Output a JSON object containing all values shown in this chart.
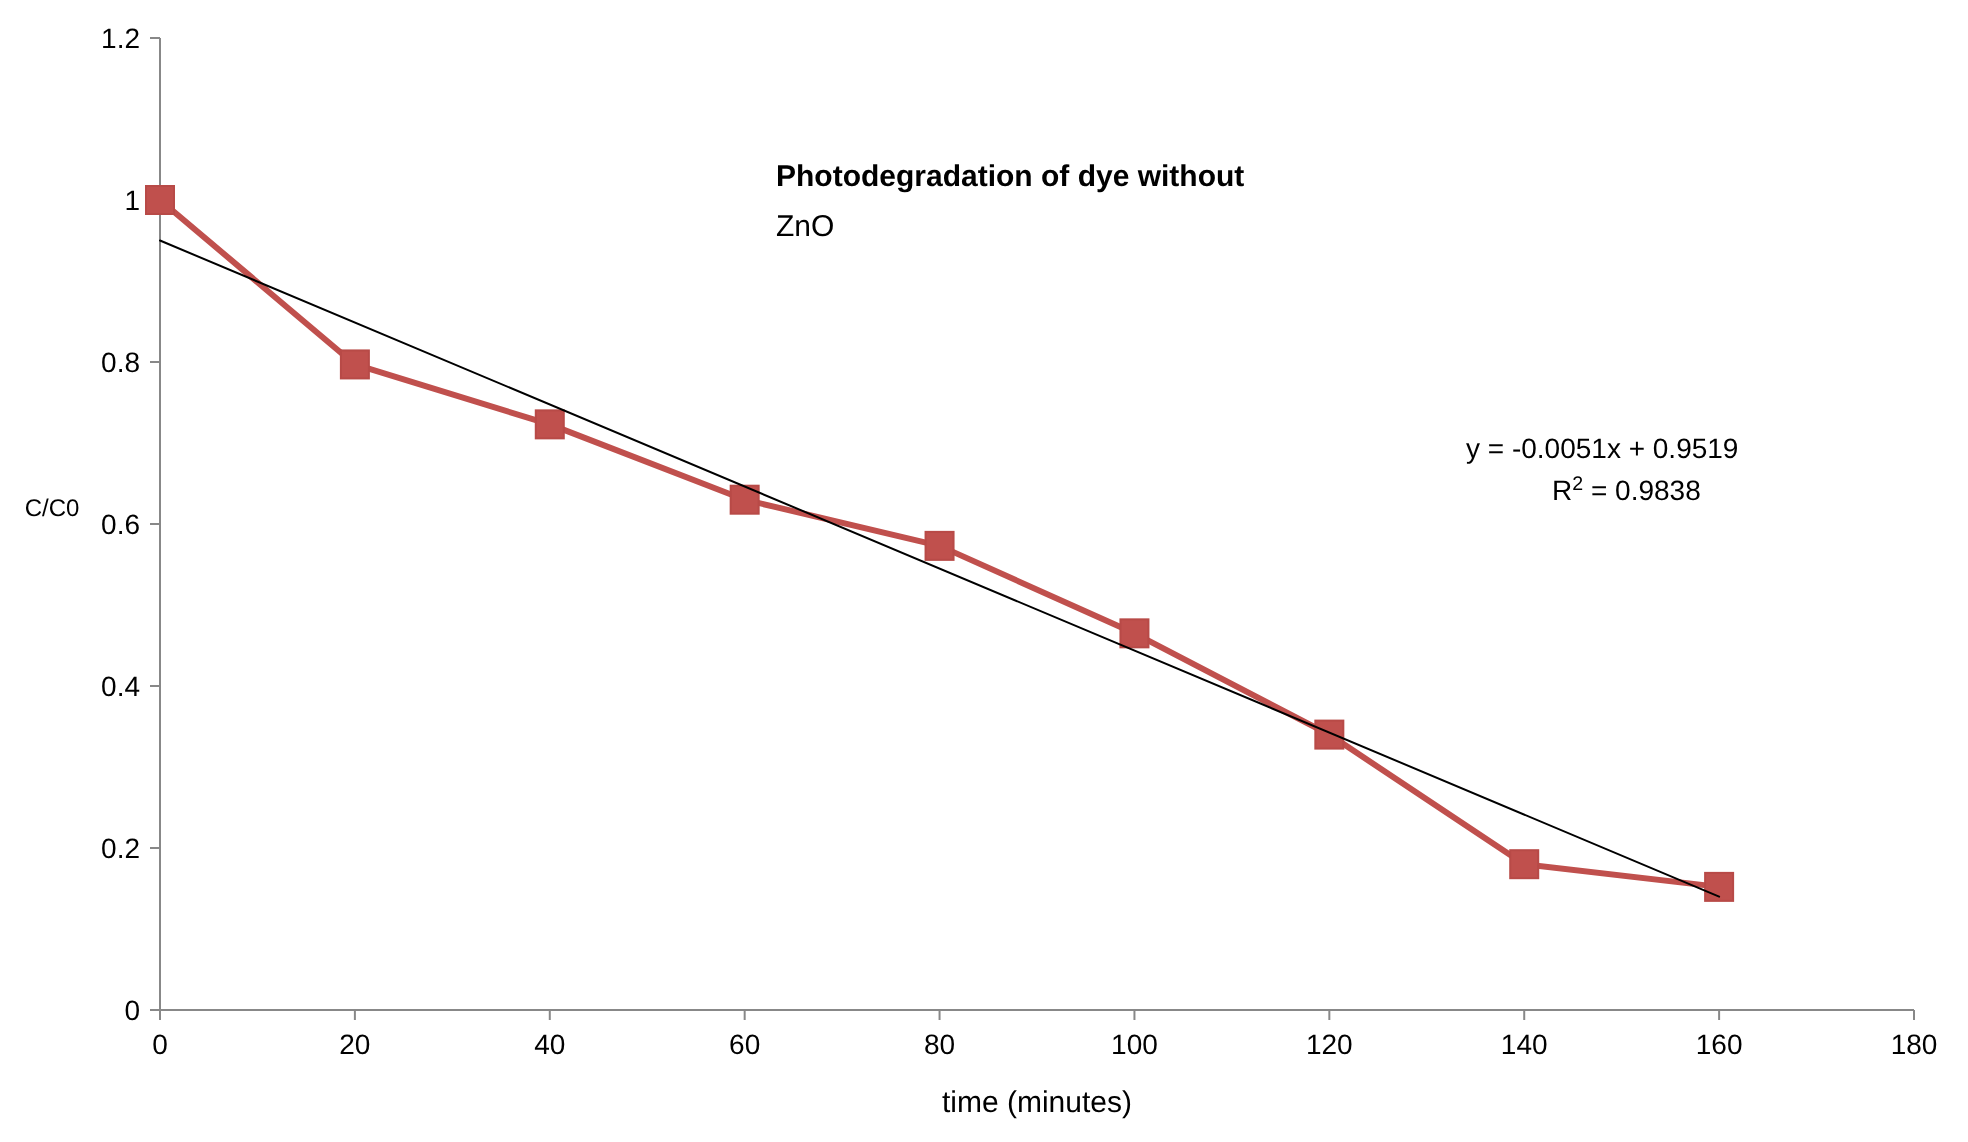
{
  "chart_data": {
    "type": "line",
    "title": "Photodegradation of dye without",
    "subtitle": "ZnO",
    "xlabel": "time (minutes)",
    "ylabel": "C/C0",
    "x": [
      0,
      20,
      40,
      60,
      80,
      100,
      120,
      140,
      160
    ],
    "series": [
      {
        "color": "#c0504d",
        "values": [
          1,
          0.797,
          0.723,
          0.63,
          0.573,
          0.465,
          0.34,
          0.18,
          0.152
        ],
        "marker": "square"
      },
      {
        "color": "#000000",
        "x": [
          0,
          160
        ],
        "values": [
          0.95,
          0.14
        ],
        "marker": "none"
      }
    ],
    "xlim": [
      0,
      180
    ],
    "xticks": [
      0,
      20,
      40,
      60,
      80,
      100,
      120,
      140,
      160,
      180
    ],
    "ylim": [
      0,
      1.2
    ],
    "yticks": [
      0,
      {
        "value": 0.2,
        "label": "0.2"
      },
      {
        "value": 0.4,
        "label": "0.4"
      },
      {
        "value": 0.6,
        "label": "0.6"
      },
      {
        "value": 0.8,
        "label": "0.8"
      },
      1,
      {
        "value": 1.2,
        "label": "1.2"
      }
    ],
    "grid": false,
    "annotations": [
      "y = -0.0051x + 0.9519",
      "R$^{2}$ = 0.9838"
    ]
  }
}
